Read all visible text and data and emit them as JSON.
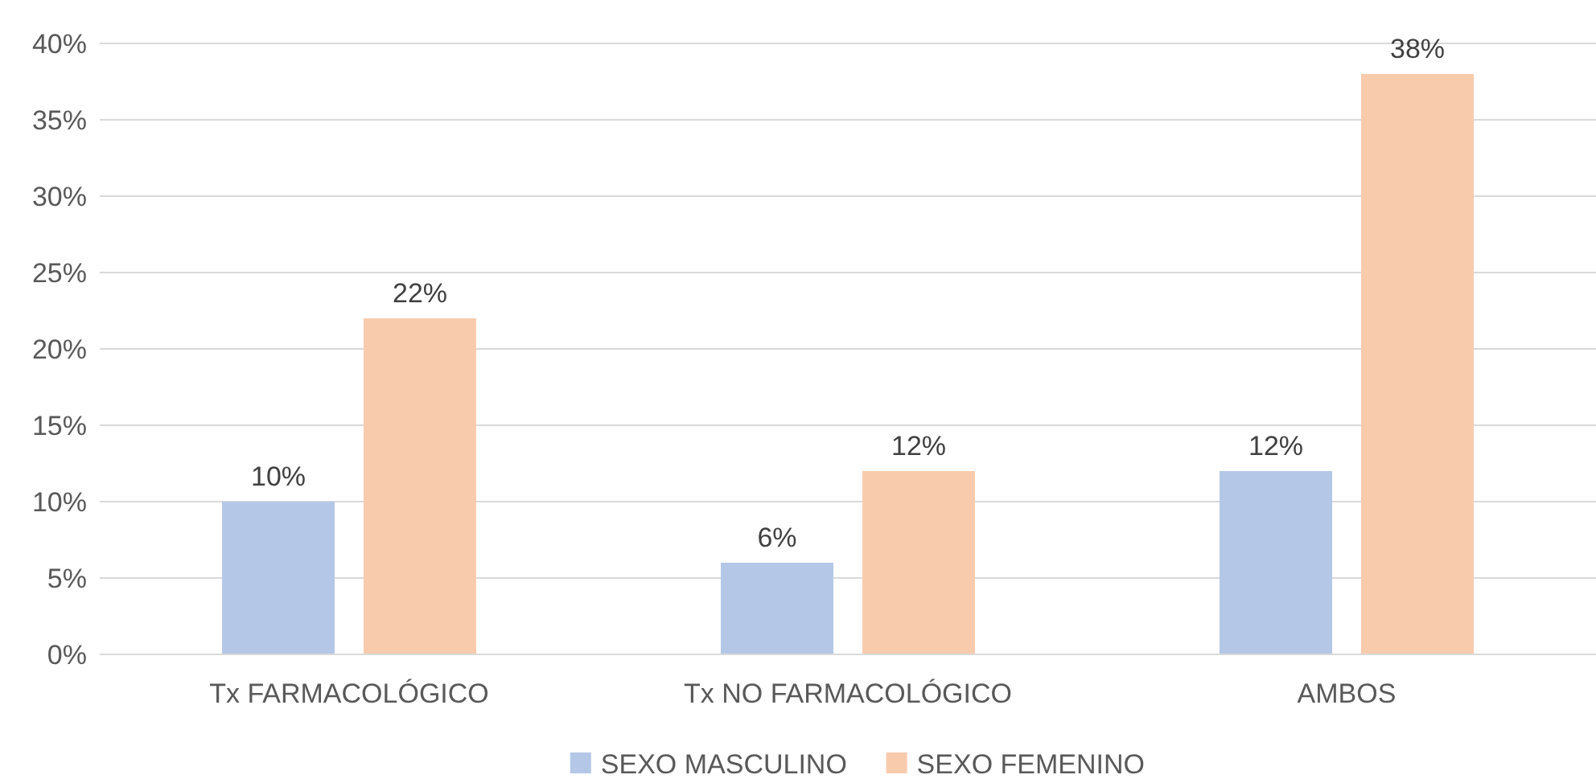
{
  "chart_data": {
    "type": "bar",
    "categories": [
      "Tx FARMACOLÓGICO",
      "Tx NO FARMACOLÓGICO",
      "AMBOS"
    ],
    "series": [
      {
        "name": "SEXO MASCULINO",
        "color": "#b4c7e7",
        "values": [
          10,
          6,
          12
        ],
        "value_labels": [
          "10%",
          "6%",
          "12%"
        ]
      },
      {
        "name": "SEXO FEMENINO",
        "color": "#f8cbad",
        "values": [
          22,
          12,
          38
        ],
        "value_labels": [
          "22%",
          "12%",
          "38%"
        ]
      }
    ],
    "ylim": [
      0,
      40
    ],
    "yticks": [
      {
        "value": 0,
        "label": "0%"
      },
      {
        "value": 5,
        "label": "5%"
      },
      {
        "value": 10,
        "label": "10%"
      },
      {
        "value": 15,
        "label": "15%"
      },
      {
        "value": 20,
        "label": "20%"
      },
      {
        "value": 25,
        "label": "25%"
      },
      {
        "value": 30,
        "label": "30%"
      },
      {
        "value": 35,
        "label": "35%"
      },
      {
        "value": 40,
        "label": "40%"
      }
    ],
    "grid": "y",
    "legend": "bottom"
  }
}
